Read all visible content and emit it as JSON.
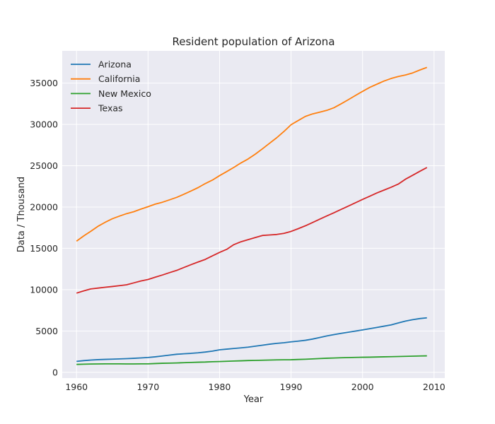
{
  "chart_data": {
    "type": "line",
    "title": "Resident population of Arizona",
    "xlabel": "Year",
    "ylabel": "Data / Thousand",
    "xlim": [
      1958,
      2011.5
    ],
    "ylim": [
      -700,
      38900
    ],
    "xticks": [
      1960,
      1970,
      1980,
      1990,
      2000,
      2010
    ],
    "yticks": [
      0,
      5000,
      10000,
      15000,
      20000,
      25000,
      30000,
      35000
    ],
    "grid": true,
    "legend": "top-left",
    "x": [
      1960,
      1961,
      1962,
      1963,
      1964,
      1965,
      1966,
      1967,
      1968,
      1969,
      1970,
      1971,
      1972,
      1973,
      1974,
      1975,
      1976,
      1977,
      1978,
      1979,
      1980,
      1981,
      1982,
      1983,
      1984,
      1985,
      1986,
      1987,
      1988,
      1989,
      1990,
      1991,
      1992,
      1993,
      1994,
      1995,
      1996,
      1997,
      1998,
      1999,
      2000,
      2001,
      2002,
      2003,
      2004,
      2005,
      2006,
      2007,
      2008,
      2009
    ],
    "series": [
      {
        "name": "Arizona",
        "color": "#1f77b4",
        "values": [
          1321,
          1410,
          1480,
          1530,
          1560,
          1590,
          1620,
          1650,
          1690,
          1740,
          1790,
          1870,
          1970,
          2080,
          2180,
          2240,
          2290,
          2360,
          2450,
          2560,
          2720,
          2800,
          2880,
          2960,
          3040,
          3160,
          3280,
          3400,
          3500,
          3580,
          3680,
          3770,
          3870,
          4020,
          4210,
          4400,
          4560,
          4710,
          4850,
          4990,
          5130,
          5280,
          5430,
          5580,
          5740,
          5970,
          6200,
          6370,
          6500,
          6590
        ]
      },
      {
        "name": "California",
        "color": "#ff7f0e",
        "values": [
          15870,
          16500,
          17070,
          17670,
          18150,
          18580,
          18900,
          19200,
          19430,
          19750,
          20040,
          20350,
          20580,
          20870,
          21170,
          21540,
          21940,
          22350,
          22840,
          23260,
          23800,
          24290,
          24800,
          25340,
          25820,
          26400,
          27050,
          27720,
          28390,
          29140,
          29960,
          30470,
          30970,
          31270,
          31480,
          31700,
          32020,
          32490,
          32990,
          33500,
          34000,
          34480,
          34870,
          35250,
          35560,
          35800,
          35980,
          36230,
          36580,
          36900
        ]
      },
      {
        "name": "New Mexico",
        "color": "#2ca02c",
        "values": [
          950,
          980,
          1000,
          1010,
          1020,
          1020,
          1020,
          1010,
          1010,
          1020,
          1020,
          1060,
          1090,
          1110,
          1130,
          1160,
          1190,
          1220,
          1240,
          1280,
          1300,
          1330,
          1360,
          1390,
          1420,
          1440,
          1460,
          1480,
          1500,
          1510,
          1520,
          1550,
          1580,
          1620,
          1660,
          1700,
          1730,
          1760,
          1780,
          1800,
          1820,
          1830,
          1850,
          1870,
          1890,
          1910,
          1930,
          1950,
          1970,
          1990
        ]
      },
      {
        "name": "Texas",
        "color": "#d62728",
        "values": [
          9580,
          9850,
          10090,
          10190,
          10290,
          10380,
          10480,
          10590,
          10820,
          11050,
          11230,
          11510,
          11770,
          12060,
          12330,
          12680,
          13020,
          13350,
          13660,
          14090,
          14510,
          14880,
          15450,
          15800,
          16050,
          16310,
          16560,
          16620,
          16680,
          16810,
          17050,
          17380,
          17730,
          18120,
          18530,
          18920,
          19310,
          19710,
          20110,
          20520,
          20920,
          21310,
          21700,
          22050,
          22400,
          22780,
          23370,
          23840,
          24320,
          24780
        ]
      }
    ]
  }
}
